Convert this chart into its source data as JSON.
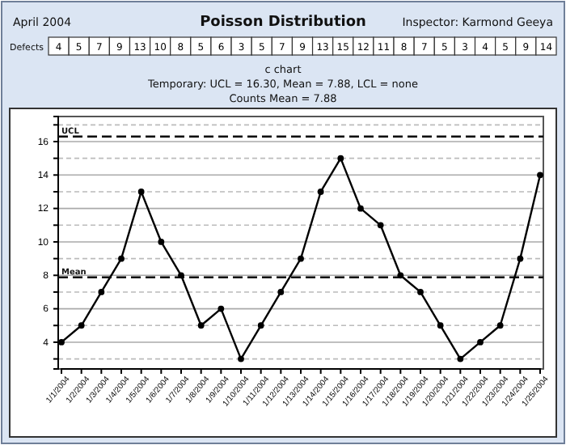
{
  "chart_data": {
    "type": "line",
    "title": "Poisson Distribution",
    "subtitle": "c chart",
    "annotations": [
      "April 2004",
      "Inspector: Karmond Geeya",
      "Defects",
      "Temporary: UCL = 16.30, Mean = 7.88, LCL = none",
      "Counts Mean = 7.88"
    ],
    "categories": [
      "1/1/2004",
      "1/2/2004",
      "1/3/2004",
      "1/4/2004",
      "1/5/2004",
      "1/6/2004",
      "1/7/2004",
      "1/8/2004",
      "1/9/2004",
      "1/10/2004",
      "1/11/2004",
      "1/12/2004",
      "1/13/2004",
      "1/14/2004",
      "1/15/2004",
      "1/16/2004",
      "1/17/2004",
      "1/18/2004",
      "1/19/2004",
      "1/20/2004",
      "1/21/2004",
      "1/22/2004",
      "1/23/2004",
      "1/24/2004",
      "1/25/2004"
    ],
    "series": [
      {
        "color": "#000000",
        "values": [
          4,
          5,
          7,
          9,
          13,
          10,
          8,
          5,
          6,
          3,
          5,
          7,
          9,
          13,
          15,
          12,
          11,
          8,
          7,
          5,
          3,
          4,
          5,
          9,
          14
        ]
      }
    ],
    "ylim": [
      2.4,
      17.5
    ],
    "yticks": [
      {
        "value": 3,
        "label": null
      },
      4,
      {
        "value": 5,
        "label": null
      },
      6,
      {
        "value": 7,
        "label": null
      },
      8,
      {
        "value": 9,
        "label": null
      },
      10,
      {
        "value": 11,
        "label": null
      },
      12,
      {
        "value": 13,
        "label": null
      },
      14,
      {
        "value": 15,
        "label": null
      },
      16,
      {
        "value": 17,
        "label": null
      }
    ],
    "grid": "y",
    "marker": "circle",
    "line_style": "solid",
    "data_labels": true,
    "ref_lines": [
      {
        "axis": "y",
        "value": 16.3,
        "label": "UCL",
        "line_style": "dashed"
      },
      {
        "axis": "y",
        "value": 7.88,
        "label": "Mean",
        "line_style": "dashed"
      }
    ]
  }
}
